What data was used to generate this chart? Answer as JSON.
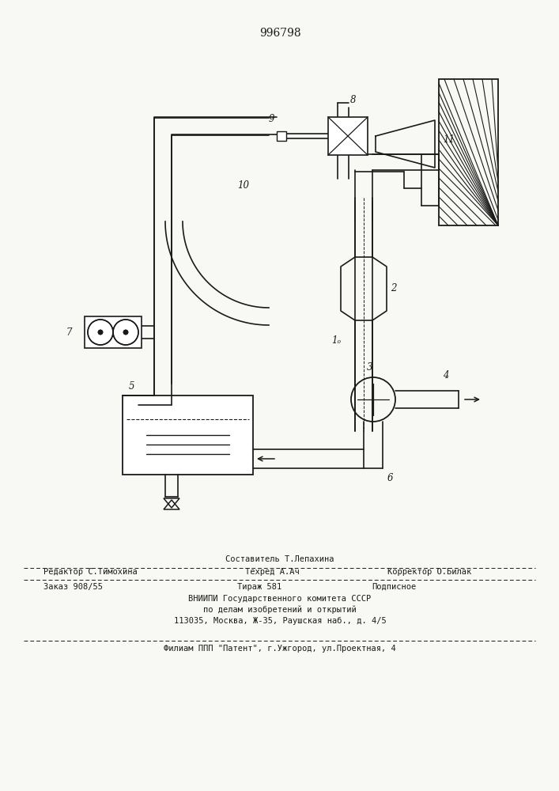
{
  "patent_number": "996798",
  "bg_color": "#f8f8f5",
  "line_color": "#1a1a1a",
  "footer": {
    "line1_center": "Составитель Т.Лепахина",
    "line2_left": "Редактор С.Тимохина",
    "line2_center": "Техред А.Ач",
    "line2_right": "Корректор О.Билак",
    "line3_left": "Заказ 908/55",
    "line3_center": "Тираж 581",
    "line3_right": "Подписное",
    "line4": "ВНИИПИ Государственного комитета СССР",
    "line5": "по делам изобретений и открытий",
    "line6": "113035, Москва, Ж-35, Раушская наб., д. 4/5",
    "line7": "Филиам ППП \"Патент\", г.Ужгород, ул.Проектная, 4"
  }
}
